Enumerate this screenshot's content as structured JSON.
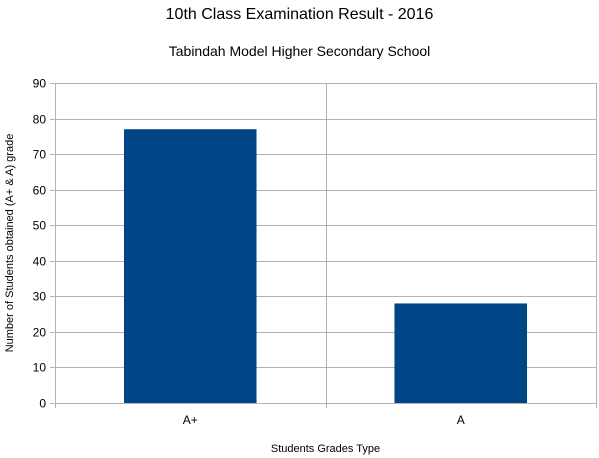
{
  "chart_data": {
    "type": "bar",
    "title": "10th Class Examination Result - 2016",
    "subtitle": "Tabindah Model Higher Secondary School",
    "categories": [
      "A+",
      "A"
    ],
    "values": [
      77,
      28
    ],
    "xlabel": "Students Grades Type",
    "ylabel": "Number of Students obtained (A+ & A) grade",
    "ylim": [
      0,
      90
    ],
    "yticks": [
      0,
      10,
      20,
      30,
      40,
      50,
      60,
      70,
      80,
      90
    ],
    "grid": true,
    "legend": "none",
    "colors": {
      "bar": "#004586",
      "grid": "#b3b3b3",
      "axis": "#b3b3b3"
    }
  }
}
